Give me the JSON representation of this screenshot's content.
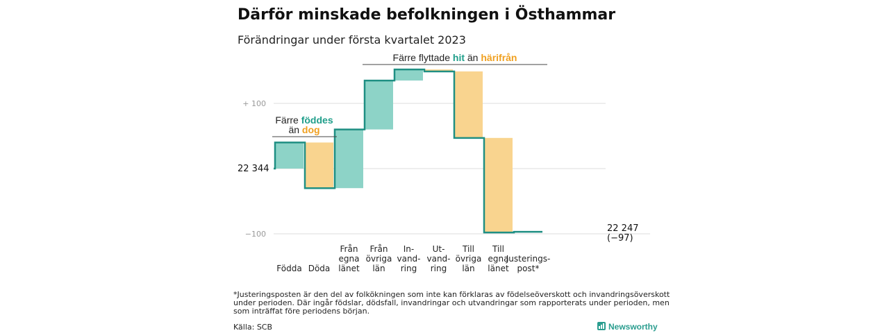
{
  "title": "Därför minskade befolkningen i Östhammar",
  "subtitle": "Förändringar under första kvartalet 2023",
  "colors": {
    "increase": "#8dd3c7",
    "decrease": "#f9d48f",
    "line": "#1f8f83",
    "grid": "#dddddd",
    "teal_text": "#1f9e8a",
    "orange_text": "#f0a020"
  },
  "annotation_birth": {
    "prefix": "Färre ",
    "teal": "föddes",
    "line2_prefix": "än ",
    "orange": "dog"
  },
  "annotation_migration": {
    "prefix": "Färre flyttade ",
    "teal": "hit",
    "middle": " än ",
    "orange": "härifrån"
  },
  "start_label": "22 344",
  "end_label": {
    "line1": "22 247",
    "line2": "(−97)"
  },
  "footnote": [
    "*Justeringsposten är den del av folkökningen som inte kan förklaras av födelseöverskott och invandringsöverskott",
    "under perioden. Där ingår födslar, dödsfall, invandringar och utvandringar som rapporterats under perioden, men",
    "som inträffat före periodens början."
  ],
  "source": "Källa: SCB",
  "brand": "Newsworthy",
  "chart_data": {
    "type": "waterfall",
    "baseline": 22344,
    "yticks": [
      {
        "value": 100,
        "label": "+ 100"
      },
      {
        "value": -100,
        "label": "−100"
      }
    ],
    "ylim": [
      -110,
      150
    ],
    "categories": [
      {
        "label": [
          "Födda"
        ],
        "value": 40
      },
      {
        "label": [
          "Döda"
        ],
        "value": -70
      },
      {
        "label": [
          "Från",
          "egna",
          "länet"
        ],
        "value": 90
      },
      {
        "label": [
          "Från",
          "övriga",
          "län"
        ],
        "value": 75
      },
      {
        "label": [
          "In-",
          "vand-",
          "ring"
        ],
        "value": 17
      },
      {
        "label": [
          "Ut-",
          "vand-",
          "ring"
        ],
        "value": -3
      },
      {
        "label": [
          "Till",
          "övriga",
          "län"
        ],
        "value": -102
      },
      {
        "label": [
          "Till",
          "egna",
          "länet"
        ],
        "value": -145
      },
      {
        "label": [
          "Justerings-",
          "post*"
        ],
        "value": 1
      }
    ],
    "end_value": 22247,
    "change": -97
  }
}
